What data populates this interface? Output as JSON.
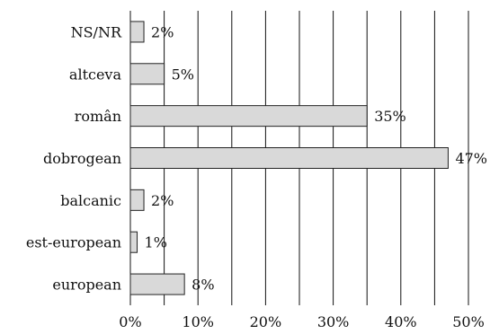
{
  "chart_data": {
    "type": "bar",
    "orientation": "horizontal",
    "categories": [
      "NS/NR",
      "altceva",
      "român",
      "dobrogean",
      "balcanic",
      "est-european",
      "european"
    ],
    "values": [
      2,
      5,
      35,
      47,
      2,
      1,
      8
    ],
    "value_labels": [
      "2%",
      "5%",
      "35%",
      "47%",
      "2%",
      "1%",
      "8%"
    ],
    "xlim": [
      0,
      50
    ],
    "xticks": [
      0,
      10,
      20,
      30,
      40,
      50
    ],
    "xtick_labels": [
      "0%",
      "10%",
      "20%",
      "30%",
      "40%",
      "50%"
    ],
    "grid": "vertical lines every 5%",
    "bar_color": "#d9d9d9",
    "bar_edge_color": "#222222",
    "grid_color": "#111111"
  }
}
